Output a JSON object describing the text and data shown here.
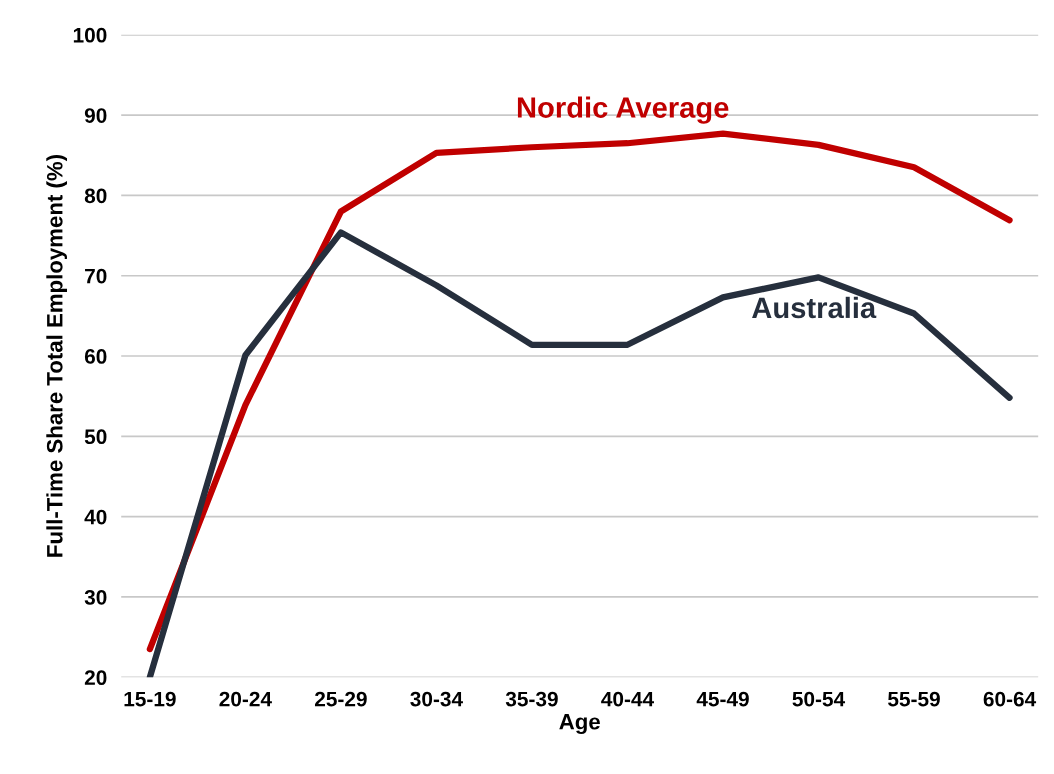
{
  "chart_data": {
    "type": "line",
    "xlabel": "Age",
    "ylabel": "Full-Time Share Total Employment (%)",
    "categories": [
      "15-19",
      "20-24",
      "25-29",
      "30-34",
      "35-39",
      "40-44",
      "45-49",
      "50-54",
      "55-59",
      "60-64"
    ],
    "series": [
      {
        "name": "Nordic Average",
        "color": "#c00000",
        "values": [
          23.5,
          53.9,
          78.0,
          85.3,
          86.0,
          86.5,
          87.7,
          86.3,
          83.5,
          76.9
        ]
      },
      {
        "name": "Australia",
        "color": "#262f3d",
        "values": [
          20.0,
          60.1,
          75.4,
          68.8,
          61.4,
          61.4,
          67.3,
          69.8,
          65.3,
          54.8
        ]
      }
    ],
    "ylim": [
      20,
      100
    ],
    "yticks": [
      20,
      30,
      40,
      50,
      60,
      70,
      80,
      90,
      100
    ],
    "grid": "y",
    "marker": "none",
    "line_style": "solid",
    "legend": false
  }
}
